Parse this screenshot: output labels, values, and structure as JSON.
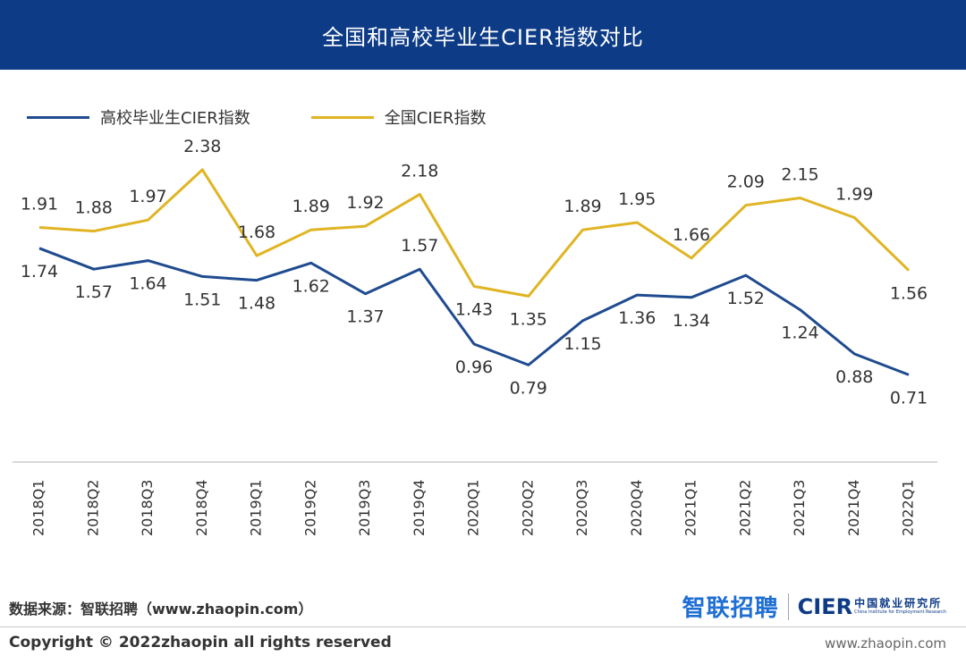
{
  "header": {
    "title": "全国和高校毕业生CIER指数对比"
  },
  "colors": {
    "header_bg": "#0d3b86",
    "graduate_line": "#1f4b8f",
    "national_line": "#e0b422",
    "axis": "#cccccc"
  },
  "chart_data": {
    "type": "line",
    "title": "全国和高校毕业生CIER指数对比",
    "categories": [
      "2018Q1",
      "2018Q2",
      "2018Q3",
      "2018Q4",
      "2019Q1",
      "2019Q2",
      "2019Q3",
      "2019Q4",
      "2020Q1",
      "2020Q2",
      "2020Q3",
      "2020Q4",
      "2021Q1",
      "2021Q2",
      "2021Q3",
      "2021Q4",
      "2022Q1"
    ],
    "series": [
      {
        "name": "高校毕业生CIER指数",
        "color": "#1f4b8f",
        "values": [
          1.74,
          1.57,
          1.64,
          1.51,
          1.48,
          1.62,
          1.37,
          1.57,
          0.96,
          0.79,
          1.15,
          1.36,
          1.34,
          1.52,
          1.24,
          0.88,
          0.71
        ]
      },
      {
        "name": "全国CIER指数",
        "color": "#e0b422",
        "values": [
          1.91,
          1.88,
          1.97,
          2.38,
          1.68,
          1.89,
          1.92,
          2.18,
          1.43,
          1.35,
          1.89,
          1.95,
          1.66,
          2.09,
          2.15,
          1.99,
          1.56
        ]
      }
    ],
    "xlabel": "",
    "ylabel": "",
    "ylim": [
      0.0,
      2.67
    ],
    "grid": false,
    "legend": "top-left"
  },
  "footer": {
    "source": "数据来源：智联招聘（www.zhaopin.com）",
    "logo_zhilian": "智联招聘",
    "logo_cier": "CIER",
    "logo_cier_cn": "中国就业研究所",
    "logo_cier_en": "China Institute for Employment Research",
    "copyright": "Copyright ©  2022zhaopin all rights reserved",
    "url": "www.zhaopin.com"
  }
}
